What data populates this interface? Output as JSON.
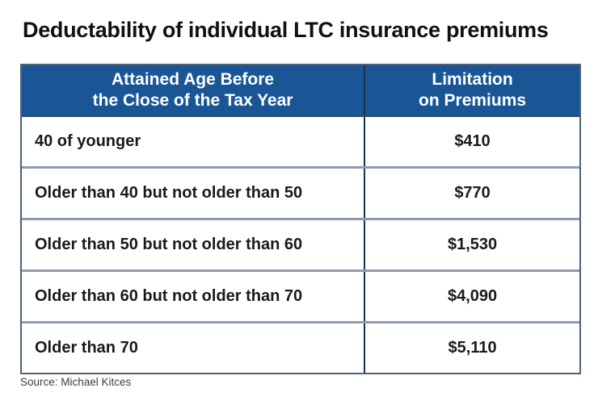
{
  "title": "Deductability of individual LTC insurance premiums",
  "source": "Source: Michael Kitces",
  "colors": {
    "header_bg": "#1a5696",
    "header_text": "#ffffff",
    "outer_border": "#4e637a",
    "column_divider": "#1d3049",
    "row_divider": "#8e9cad",
    "title_text": "#111111",
    "cell_text": "#1a1a1a",
    "source_text": "#3d3d3d"
  },
  "chart_data": {
    "type": "table",
    "title": "Deductability of individual LTC insurance premiums",
    "columns": [
      {
        "line1": "Attained Age Before",
        "line2": "the Close of the Tax Year"
      },
      {
        "line1": "Limitation",
        "line2": "on Premiums"
      }
    ],
    "rows": [
      {
        "age": "40 of younger",
        "limit": "$410"
      },
      {
        "age": "Older than 40 but not older than 50",
        "limit": "$770"
      },
      {
        "age": "Older than 50 but not older than 60",
        "limit": "$1,530"
      },
      {
        "age": "Older than 60 but not older than 70",
        "limit": "$4,090"
      },
      {
        "age": "Older than 70",
        "limit": "$5,110"
      }
    ],
    "limits_numeric": [
      410,
      770,
      1530,
      4090,
      5110
    ],
    "source": "Source: Michael Kitces"
  }
}
